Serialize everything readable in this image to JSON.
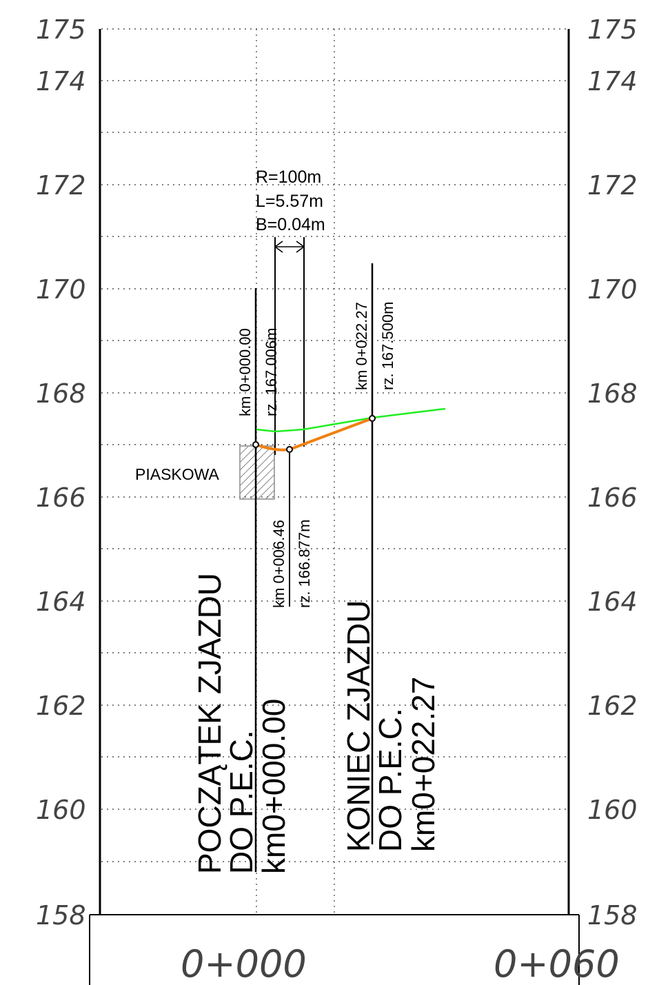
{
  "elevation_labels": [
    "175",
    "174",
    "172",
    "170",
    "168",
    "166",
    "164",
    "162",
    "160",
    "158"
  ],
  "station_labels": [
    "0+000",
    "0+060"
  ],
  "curve": {
    "radius": "R=100m",
    "length": "L=5.57m",
    "bisector": "B=0.04m"
  },
  "points": {
    "start": {
      "km": "km 0+000.00",
      "rz": "rz. 167.006m"
    },
    "mid": {
      "km": "km 0+006.46",
      "rz": "rz. 166.877m"
    },
    "end": {
      "km": "km 0+022.27",
      "rz": "rz. 167.500m"
    }
  },
  "street_label": "PIASKOWA",
  "start_annotation": {
    "line1": "POCZĄTEK ZJAZDU",
    "line2": "DO P.E.C.",
    "line3": "km0+000.00"
  },
  "end_annotation": {
    "line1": "KONIEC ZJAZDU",
    "line2": "DO P.E.C.",
    "line3": "km0+022.27"
  },
  "colors": {
    "design": "#f08010",
    "terrain": "#22ee22",
    "hatch": "#888888"
  }
}
